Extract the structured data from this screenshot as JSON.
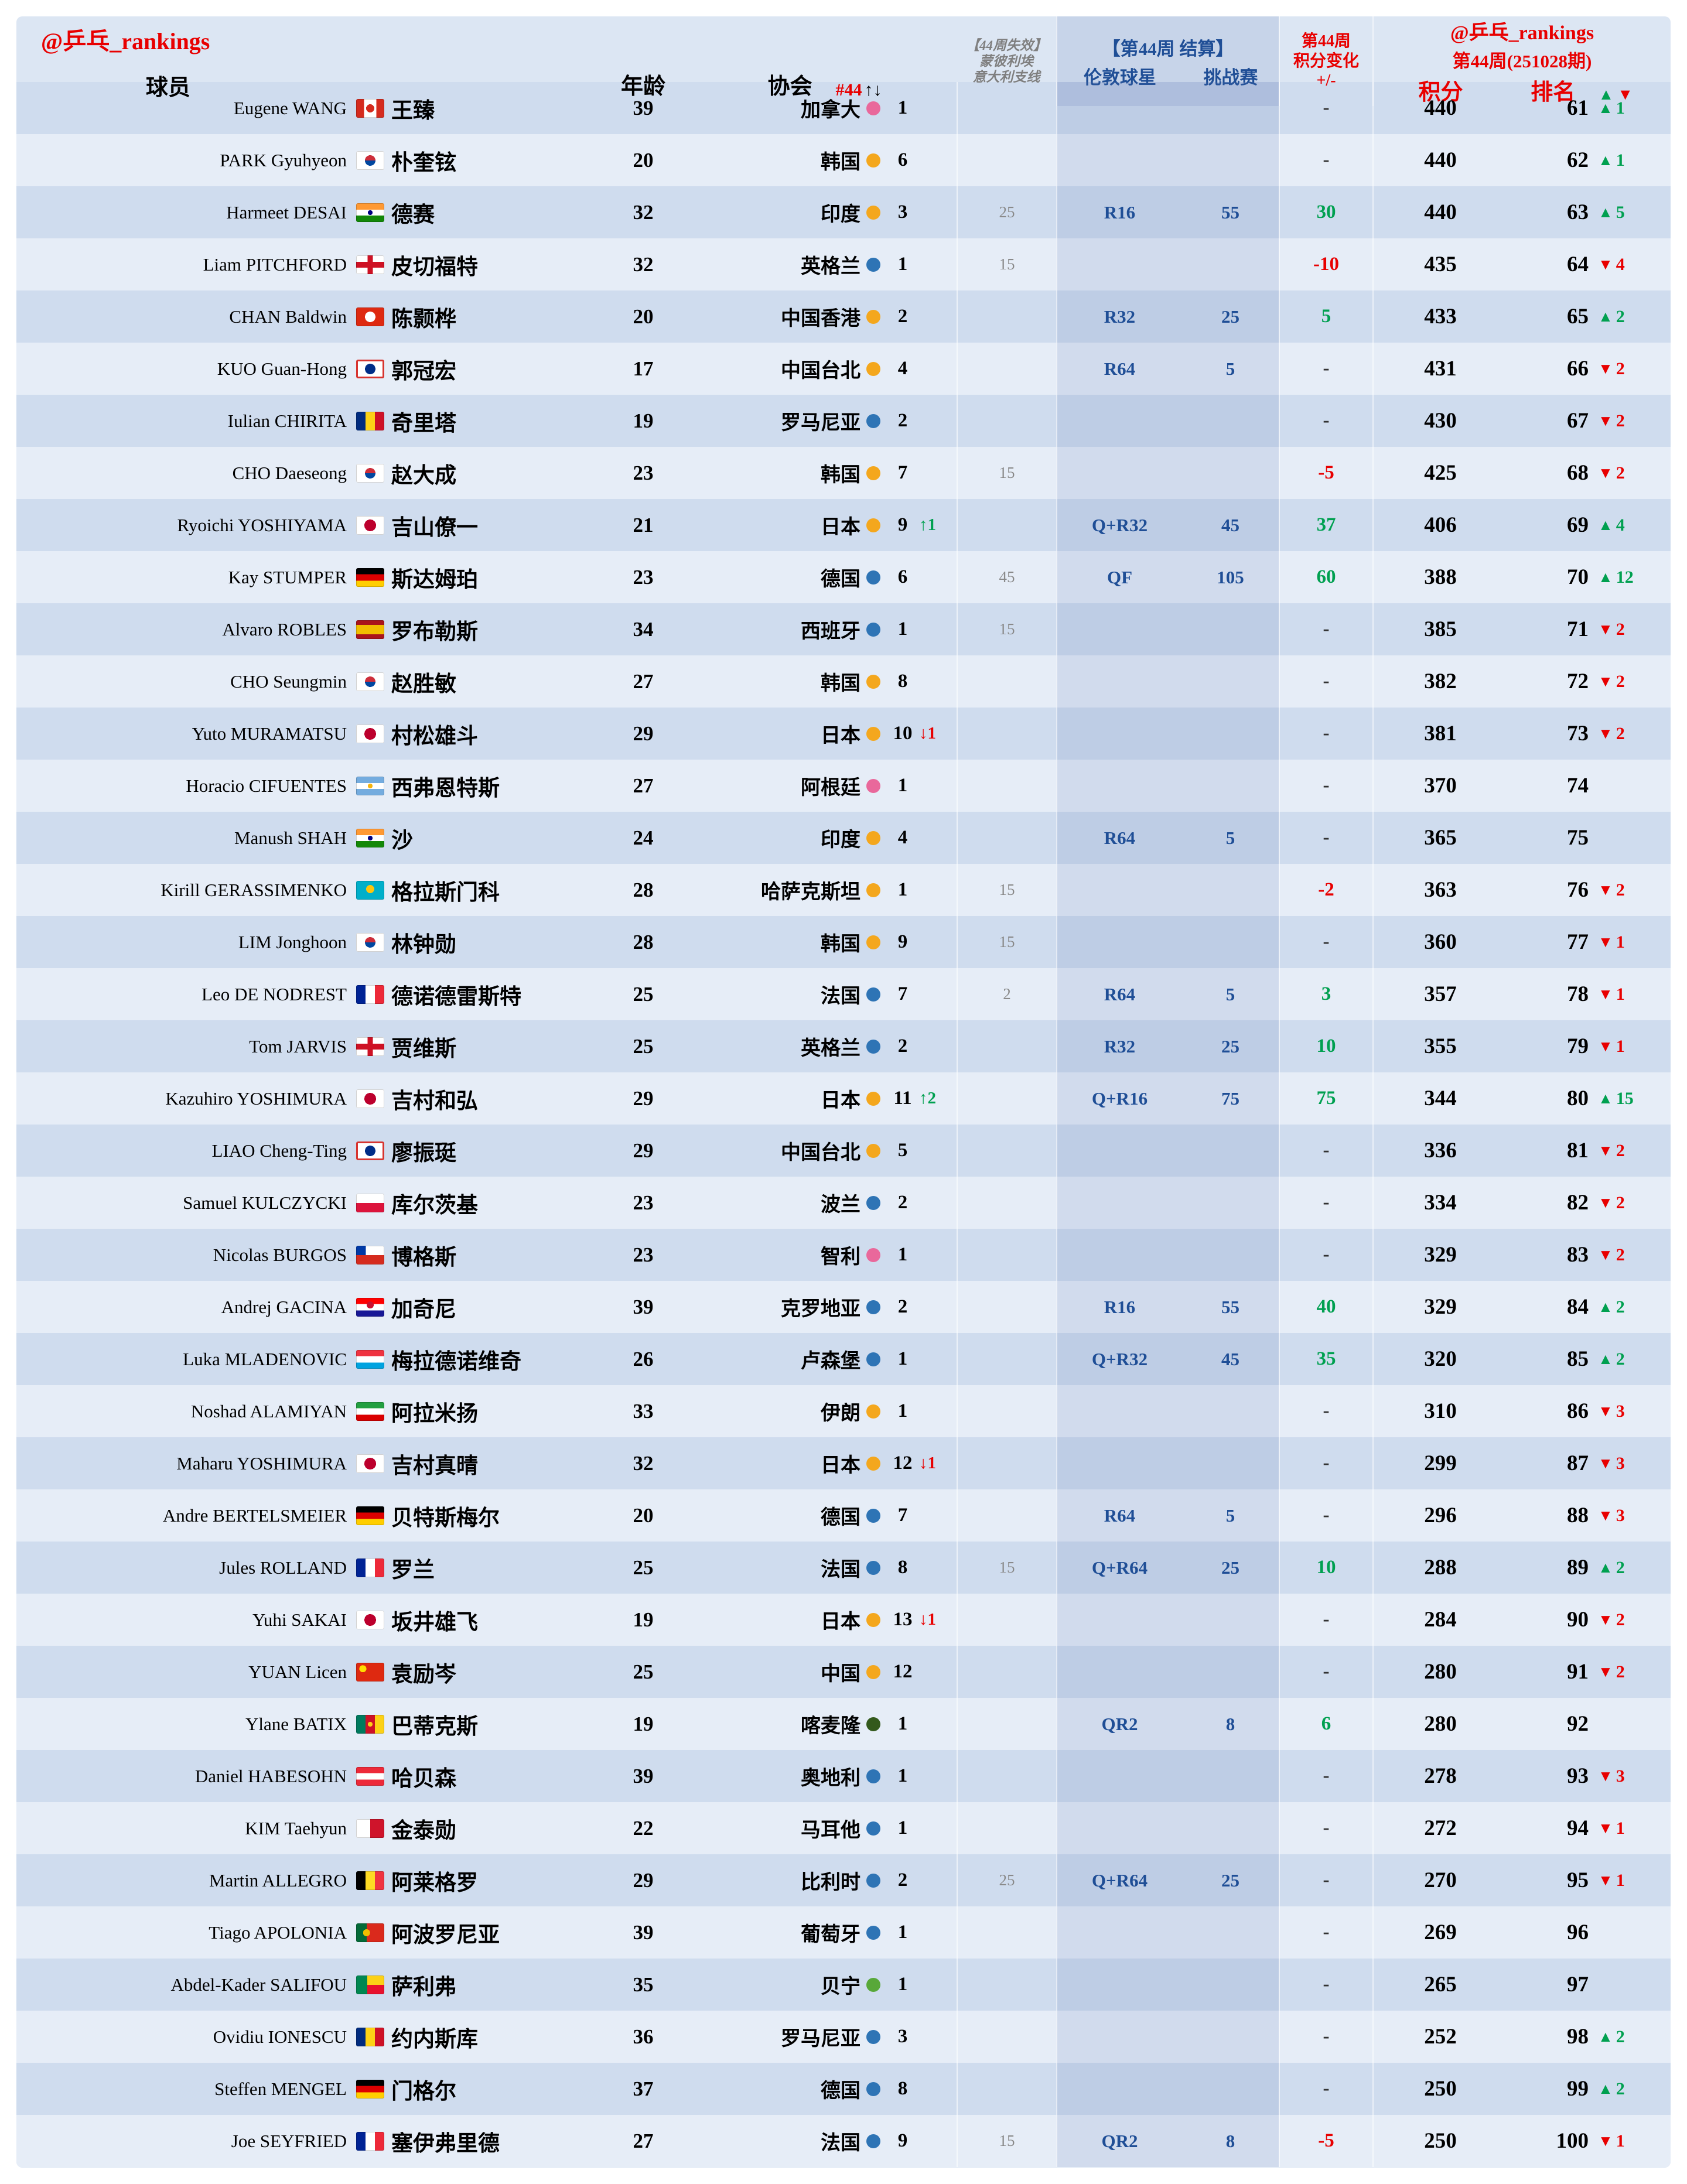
{
  "header": {
    "brand": "@乒乓_rankings",
    "player": "球员",
    "age": "年龄",
    "assoc": "协会",
    "assoc_rank": "#44",
    "assoc_arrows": "↑↓",
    "expire1": "【44周失效】",
    "expire2": "蒙彼利埃",
    "expire3": "意大利支线",
    "event_title": "【第44周 结算】",
    "event_sub1": "伦敦球星",
    "event_sub2": "挑战赛",
    "change1": "第44周",
    "change2": "积分变化",
    "change3": "+/-",
    "right_brand": "@乒乓_rankings",
    "right_week": "第44周(251028期)",
    "points": "积分",
    "rank": "排名",
    "up": "▲",
    "down": "▼"
  },
  "colors": {
    "accent_red": "#e80000",
    "accent_green": "#00a050",
    "accent_blue": "#1f4e96",
    "dot_pink": "#e9689b",
    "dot_yellow": "#f4a71d",
    "dot_blue": "#2e74b5",
    "dot_green": "#58a839",
    "dot_darkgreen": "#33591c"
  },
  "rows": [
    {
      "en": "Eugene WANG",
      "flag": "ca",
      "cn": "王臻",
      "age": "39",
      "assoc": "加拿大",
      "dot": "pink",
      "anum": "1",
      "adelta": "",
      "adir": "",
      "exp": "",
      "rnd": "",
      "pts": "",
      "chg": "-",
      "points": "440",
      "rank": "61",
      "rdelta": "1",
      "rdir": "up"
    },
    {
      "en": "PARK Gyuhyeon",
      "flag": "kr",
      "cn": "朴奎铉",
      "age": "20",
      "assoc": "韩国",
      "dot": "yellow",
      "anum": "6",
      "adelta": "",
      "adir": "",
      "exp": "",
      "rnd": "",
      "pts": "",
      "chg": "-",
      "points": "440",
      "rank": "62",
      "rdelta": "1",
      "rdir": "up"
    },
    {
      "en": "Harmeet DESAI",
      "flag": "in",
      "cn": "德赛",
      "age": "32",
      "assoc": "印度",
      "dot": "yellow",
      "anum": "3",
      "adelta": "",
      "adir": "",
      "exp": "25",
      "rnd": "R16",
      "pts": "55",
      "chg": "30",
      "points": "440",
      "rank": "63",
      "rdelta": "5",
      "rdir": "up"
    },
    {
      "en": "Liam PITCHFORD",
      "flag": "eng",
      "cn": "皮切福特",
      "age": "32",
      "assoc": "英格兰",
      "dot": "blue",
      "anum": "1",
      "adelta": "",
      "adir": "",
      "exp": "15",
      "rnd": "",
      "pts": "",
      "chg": "-10",
      "points": "435",
      "rank": "64",
      "rdelta": "4",
      "rdir": "down"
    },
    {
      "en": "CHAN Baldwin",
      "flag": "hk",
      "cn": "陈颢桦",
      "age": "20",
      "assoc": "中国香港",
      "dot": "yellow",
      "anum": "2",
      "adelta": "",
      "adir": "",
      "exp": "",
      "rnd": "R32",
      "pts": "25",
      "chg": "5",
      "points": "433",
      "rank": "65",
      "rdelta": "2",
      "rdir": "up"
    },
    {
      "en": "KUO Guan-Hong",
      "flag": "tpe",
      "cn": "郭冠宏",
      "age": "17",
      "assoc": "中国台北",
      "dot": "yellow",
      "anum": "4",
      "adelta": "",
      "adir": "",
      "exp": "",
      "rnd": "R64",
      "pts": "5",
      "chg": "-",
      "points": "431",
      "rank": "66",
      "rdelta": "2",
      "rdir": "down"
    },
    {
      "en": "Iulian CHIRITA",
      "flag": "ro",
      "cn": "奇里塔",
      "age": "19",
      "assoc": "罗马尼亚",
      "dot": "blue",
      "anum": "2",
      "adelta": "",
      "adir": "",
      "exp": "",
      "rnd": "",
      "pts": "",
      "chg": "-",
      "points": "430",
      "rank": "67",
      "rdelta": "2",
      "rdir": "down"
    },
    {
      "en": "CHO Daeseong",
      "flag": "kr",
      "cn": "赵大成",
      "age": "23",
      "assoc": "韩国",
      "dot": "yellow",
      "anum": "7",
      "adelta": "",
      "adir": "",
      "exp": "15",
      "rnd": "",
      "pts": "",
      "chg": "-5",
      "points": "425",
      "rank": "68",
      "rdelta": "2",
      "rdir": "down"
    },
    {
      "en": "Ryoichi YOSHIYAMA",
      "flag": "jp",
      "cn": "吉山僚一",
      "age": "21",
      "assoc": "日本",
      "dot": "yellow",
      "anum": "9",
      "adelta": "↑1",
      "adir": "up",
      "exp": "",
      "rnd": "Q+R32",
      "pts": "45",
      "chg": "37",
      "points": "406",
      "rank": "69",
      "rdelta": "4",
      "rdir": "up"
    },
    {
      "en": "Kay STUMPER",
      "flag": "de",
      "cn": "斯达姆珀",
      "age": "23",
      "assoc": "德国",
      "dot": "blue",
      "anum": "6",
      "adelta": "",
      "adir": "",
      "exp": "45",
      "rnd": "QF",
      "pts": "105",
      "chg": "60",
      "points": "388",
      "rank": "70",
      "rdelta": "12",
      "rdir": "up"
    },
    {
      "en": "Alvaro ROBLES",
      "flag": "es",
      "cn": "罗布勒斯",
      "age": "34",
      "assoc": "西班牙",
      "dot": "blue",
      "anum": "1",
      "adelta": "",
      "adir": "",
      "exp": "15",
      "rnd": "",
      "pts": "",
      "chg": "-",
      "points": "385",
      "rank": "71",
      "rdelta": "2",
      "rdir": "down"
    },
    {
      "en": "CHO Seungmin",
      "flag": "kr",
      "cn": "赵胜敏",
      "age": "27",
      "assoc": "韩国",
      "dot": "yellow",
      "anum": "8",
      "adelta": "",
      "adir": "",
      "exp": "",
      "rnd": "",
      "pts": "",
      "chg": "-",
      "points": "382",
      "rank": "72",
      "rdelta": "2",
      "rdir": "down"
    },
    {
      "en": "Yuto MURAMATSU",
      "flag": "jp",
      "cn": "村松雄斗",
      "age": "29",
      "assoc": "日本",
      "dot": "yellow",
      "anum": "10",
      "adelta": "↓1",
      "adir": "down",
      "exp": "",
      "rnd": "",
      "pts": "",
      "chg": "-",
      "points": "381",
      "rank": "73",
      "rdelta": "2",
      "rdir": "down"
    },
    {
      "en": "Horacio CIFUENTES",
      "flag": "ar",
      "cn": "西弗恩特斯",
      "age": "27",
      "assoc": "阿根廷",
      "dot": "pink",
      "anum": "1",
      "adelta": "",
      "adir": "",
      "exp": "",
      "rnd": "",
      "pts": "",
      "chg": "-",
      "points": "370",
      "rank": "74",
      "rdelta": "",
      "rdir": ""
    },
    {
      "en": "Manush SHAH",
      "flag": "in",
      "cn": "沙",
      "age": "24",
      "assoc": "印度",
      "dot": "yellow",
      "anum": "4",
      "adelta": "",
      "adir": "",
      "exp": "",
      "rnd": "R64",
      "pts": "5",
      "chg": "-",
      "points": "365",
      "rank": "75",
      "rdelta": "",
      "rdir": ""
    },
    {
      "en": "Kirill GERASSIMENKO",
      "flag": "kz",
      "cn": "格拉斯门科",
      "age": "28",
      "assoc": "哈萨克斯坦",
      "dot": "yellow",
      "anum": "1",
      "adelta": "",
      "adir": "",
      "exp": "15",
      "rnd": "",
      "pts": "",
      "chg": "-2",
      "points": "363",
      "rank": "76",
      "rdelta": "2",
      "rdir": "down"
    },
    {
      "en": "LIM Jonghoon",
      "flag": "kr",
      "cn": "林钟勋",
      "age": "28",
      "assoc": "韩国",
      "dot": "yellow",
      "anum": "9",
      "adelta": "",
      "adir": "",
      "exp": "15",
      "rnd": "",
      "pts": "",
      "chg": "-",
      "points": "360",
      "rank": "77",
      "rdelta": "1",
      "rdir": "down"
    },
    {
      "en": "Leo DE NODREST",
      "flag": "fr",
      "cn": "德诺德雷斯特",
      "age": "25",
      "assoc": "法国",
      "dot": "blue",
      "anum": "7",
      "adelta": "",
      "adir": "",
      "exp": "2",
      "rnd": "R64",
      "pts": "5",
      "chg": "3",
      "points": "357",
      "rank": "78",
      "rdelta": "1",
      "rdir": "down"
    },
    {
      "en": "Tom JARVIS",
      "flag": "eng",
      "cn": "贾维斯",
      "age": "25",
      "assoc": "英格兰",
      "dot": "blue",
      "anum": "2",
      "adelta": "",
      "adir": "",
      "exp": "",
      "rnd": "R32",
      "pts": "25",
      "chg": "10",
      "points": "355",
      "rank": "79",
      "rdelta": "1",
      "rdir": "down"
    },
    {
      "en": "Kazuhiro YOSHIMURA",
      "flag": "jp",
      "cn": "吉村和弘",
      "age": "29",
      "assoc": "日本",
      "dot": "yellow",
      "anum": "11",
      "adelta": "↑2",
      "adir": "up",
      "exp": "",
      "rnd": "Q+R16",
      "pts": "75",
      "chg": "75",
      "points": "344",
      "rank": "80",
      "rdelta": "15",
      "rdir": "up"
    },
    {
      "en": "LIAO Cheng-Ting",
      "flag": "tpe",
      "cn": "廖振珽",
      "age": "29",
      "assoc": "中国台北",
      "dot": "yellow",
      "anum": "5",
      "adelta": "",
      "adir": "",
      "exp": "",
      "rnd": "",
      "pts": "",
      "chg": "-",
      "points": "336",
      "rank": "81",
      "rdelta": "2",
      "rdir": "down"
    },
    {
      "en": "Samuel KULCZYCKI",
      "flag": "pl",
      "cn": "库尔茨基",
      "age": "23",
      "assoc": "波兰",
      "dot": "blue",
      "anum": "2",
      "adelta": "",
      "adir": "",
      "exp": "",
      "rnd": "",
      "pts": "",
      "chg": "-",
      "points": "334",
      "rank": "82",
      "rdelta": "2",
      "rdir": "down"
    },
    {
      "en": "Nicolas BURGOS",
      "flag": "cl",
      "cn": "博格斯",
      "age": "23",
      "assoc": "智利",
      "dot": "pink",
      "anum": "1",
      "adelta": "",
      "adir": "",
      "exp": "",
      "rnd": "",
      "pts": "",
      "chg": "-",
      "points": "329",
      "rank": "83",
      "rdelta": "2",
      "rdir": "down"
    },
    {
      "en": "Andrej GACINA",
      "flag": "hr",
      "cn": "加奇尼",
      "age": "39",
      "assoc": "克罗地亚",
      "dot": "blue",
      "anum": "2",
      "adelta": "",
      "adir": "",
      "exp": "",
      "rnd": "R16",
      "pts": "55",
      "chg": "40",
      "points": "329",
      "rank": "84",
      "rdelta": "2",
      "rdir": "up"
    },
    {
      "en": "Luka MLADENOVIC",
      "flag": "lu",
      "cn": "梅拉德诺维奇",
      "age": "26",
      "assoc": "卢森堡",
      "dot": "blue",
      "anum": "1",
      "adelta": "",
      "adir": "",
      "exp": "",
      "rnd": "Q+R32",
      "pts": "45",
      "chg": "35",
      "points": "320",
      "rank": "85",
      "rdelta": "2",
      "rdir": "up"
    },
    {
      "en": "Noshad ALAMIYAN",
      "flag": "ir",
      "cn": "阿拉米扬",
      "age": "33",
      "assoc": "伊朗",
      "dot": "yellow",
      "anum": "1",
      "adelta": "",
      "adir": "",
      "exp": "",
      "rnd": "",
      "pts": "",
      "chg": "-",
      "points": "310",
      "rank": "86",
      "rdelta": "3",
      "rdir": "down"
    },
    {
      "en": "Maharu YOSHIMURA",
      "flag": "jp",
      "cn": "吉村真晴",
      "age": "32",
      "assoc": "日本",
      "dot": "yellow",
      "anum": "12",
      "adelta": "↓1",
      "adir": "down",
      "exp": "",
      "rnd": "",
      "pts": "",
      "chg": "-",
      "points": "299",
      "rank": "87",
      "rdelta": "3",
      "rdir": "down"
    },
    {
      "en": "Andre BERTELSMEIER",
      "flag": "de",
      "cn": "贝特斯梅尔",
      "age": "20",
      "assoc": "德国",
      "dot": "blue",
      "anum": "7",
      "adelta": "",
      "adir": "",
      "exp": "",
      "rnd": "R64",
      "pts": "5",
      "chg": "-",
      "points": "296",
      "rank": "88",
      "rdelta": "3",
      "rdir": "down"
    },
    {
      "en": "Jules ROLLAND",
      "flag": "fr",
      "cn": "罗兰",
      "age": "25",
      "assoc": "法国",
      "dot": "blue",
      "anum": "8",
      "adelta": "",
      "adir": "",
      "exp": "15",
      "rnd": "Q+R64",
      "pts": "25",
      "chg": "10",
      "points": "288",
      "rank": "89",
      "rdelta": "2",
      "rdir": "up"
    },
    {
      "en": "Yuhi SAKAI",
      "flag": "jp",
      "cn": "坂井雄飞",
      "age": "19",
      "assoc": "日本",
      "dot": "yellow",
      "anum": "13",
      "adelta": "↓1",
      "adir": "down",
      "exp": "",
      "rnd": "",
      "pts": "",
      "chg": "-",
      "points": "284",
      "rank": "90",
      "rdelta": "2",
      "rdir": "down"
    },
    {
      "en": "YUAN Licen",
      "flag": "cn",
      "cn": "袁励岑",
      "age": "25",
      "assoc": "中国",
      "dot": "yellow",
      "anum": "12",
      "adelta": "",
      "adir": "",
      "exp": "",
      "rnd": "",
      "pts": "",
      "chg": "-",
      "points": "280",
      "rank": "91",
      "rdelta": "2",
      "rdir": "down"
    },
    {
      "en": "Ylane BATIX",
      "flag": "cm",
      "cn": "巴蒂克斯",
      "age": "19",
      "assoc": "喀麦隆",
      "dot": "darkgreen",
      "anum": "1",
      "adelta": "",
      "adir": "",
      "exp": "",
      "rnd": "QR2",
      "pts": "8",
      "chg": "6",
      "points": "280",
      "rank": "92",
      "rdelta": "",
      "rdir": ""
    },
    {
      "en": "Daniel HABESOHN",
      "flag": "at",
      "cn": "哈贝森",
      "age": "39",
      "assoc": "奥地利",
      "dot": "blue",
      "anum": "1",
      "adelta": "",
      "adir": "",
      "exp": "",
      "rnd": "",
      "pts": "",
      "chg": "-",
      "points": "278",
      "rank": "93",
      "rdelta": "3",
      "rdir": "down"
    },
    {
      "en": "KIM Taehyun",
      "flag": "mt",
      "cn": "金泰勋",
      "age": "22",
      "assoc": "马耳他",
      "dot": "blue",
      "anum": "1",
      "adelta": "",
      "adir": "",
      "exp": "",
      "rnd": "",
      "pts": "",
      "chg": "-",
      "points": "272",
      "rank": "94",
      "rdelta": "1",
      "rdir": "down"
    },
    {
      "en": "Martin ALLEGRO",
      "flag": "be",
      "cn": "阿莱格罗",
      "age": "29",
      "assoc": "比利时",
      "dot": "blue",
      "anum": "2",
      "adelta": "",
      "adir": "",
      "exp": "25",
      "rnd": "Q+R64",
      "pts": "25",
      "chg": "-",
      "points": "270",
      "rank": "95",
      "rdelta": "1",
      "rdir": "down"
    },
    {
      "en": "Tiago APOLONIA",
      "flag": "pt",
      "cn": "阿波罗尼亚",
      "age": "39",
      "assoc": "葡萄牙",
      "dot": "blue",
      "anum": "1",
      "adelta": "",
      "adir": "",
      "exp": "",
      "rnd": "",
      "pts": "",
      "chg": "-",
      "points": "269",
      "rank": "96",
      "rdelta": "",
      "rdir": ""
    },
    {
      "en": "Abdel-Kader SALIFOU",
      "flag": "bj",
      "cn": "萨利弗",
      "age": "35",
      "assoc": "贝宁",
      "dot": "green",
      "anum": "1",
      "adelta": "",
      "adir": "",
      "exp": "",
      "rnd": "",
      "pts": "",
      "chg": "-",
      "points": "265",
      "rank": "97",
      "rdelta": "",
      "rdir": ""
    },
    {
      "en": "Ovidiu IONESCU",
      "flag": "ro",
      "cn": "约内斯库",
      "age": "36",
      "assoc": "罗马尼亚",
      "dot": "blue",
      "anum": "3",
      "adelta": "",
      "adir": "",
      "exp": "",
      "rnd": "",
      "pts": "",
      "chg": "-",
      "points": "252",
      "rank": "98",
      "rdelta": "2",
      "rdir": "up"
    },
    {
      "en": "Steffen MENGEL",
      "flag": "de",
      "cn": "门格尔",
      "age": "37",
      "assoc": "德国",
      "dot": "blue",
      "anum": "8",
      "adelta": "",
      "adir": "",
      "exp": "",
      "rnd": "",
      "pts": "",
      "chg": "-",
      "points": "250",
      "rank": "99",
      "rdelta": "2",
      "rdir": "up"
    },
    {
      "en": "Joe SEYFRIED",
      "flag": "fr",
      "cn": "塞伊弗里德",
      "age": "27",
      "assoc": "法国",
      "dot": "blue",
      "anum": "9",
      "adelta": "",
      "adir": "",
      "exp": "15",
      "rnd": "QR2",
      "pts": "8",
      "chg": "-5",
      "points": "250",
      "rank": "100",
      "rdelta": "1",
      "rdir": "down"
    }
  ]
}
